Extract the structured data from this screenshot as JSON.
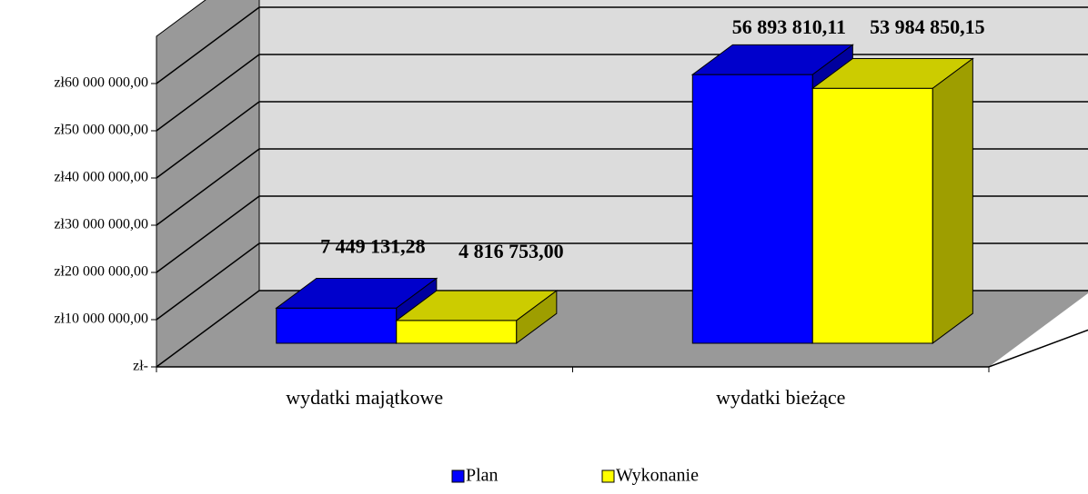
{
  "chart_data": {
    "type": "bar3d",
    "categories": [
      "wydatki majątkowe",
      "wydatki bieżące"
    ],
    "series": [
      {
        "name": "Plan",
        "color": "#0000ff",
        "values": [
          7449131.28,
          56893810.11
        ],
        "value_labels": [
          "7 449 131,28",
          "56 893 810,11"
        ]
      },
      {
        "name": "Wykonanie",
        "color": "#ffff00",
        "values": [
          4816753.0,
          53984850.15
        ],
        "value_labels": [
          "4 816 753,00",
          "53 984 850,15"
        ]
      }
    ],
    "ylim": [
      0,
      70000000
    ],
    "yticks": [
      {
        "value": 0,
        "label": "zł-"
      },
      {
        "value": 10000000,
        "label": "zł10 000 000,00"
      },
      {
        "value": 20000000,
        "label": "zł20 000 000,00"
      },
      {
        "value": 30000000,
        "label": "zł30 000 000,00"
      },
      {
        "value": 40000000,
        "label": "zł40 000 000,00"
      },
      {
        "value": 50000000,
        "label": "zł50 000 000,00"
      },
      {
        "value": 60000000,
        "label": "zł60 000 000,00"
      }
    ],
    "grid": true,
    "legend": "bottom"
  }
}
